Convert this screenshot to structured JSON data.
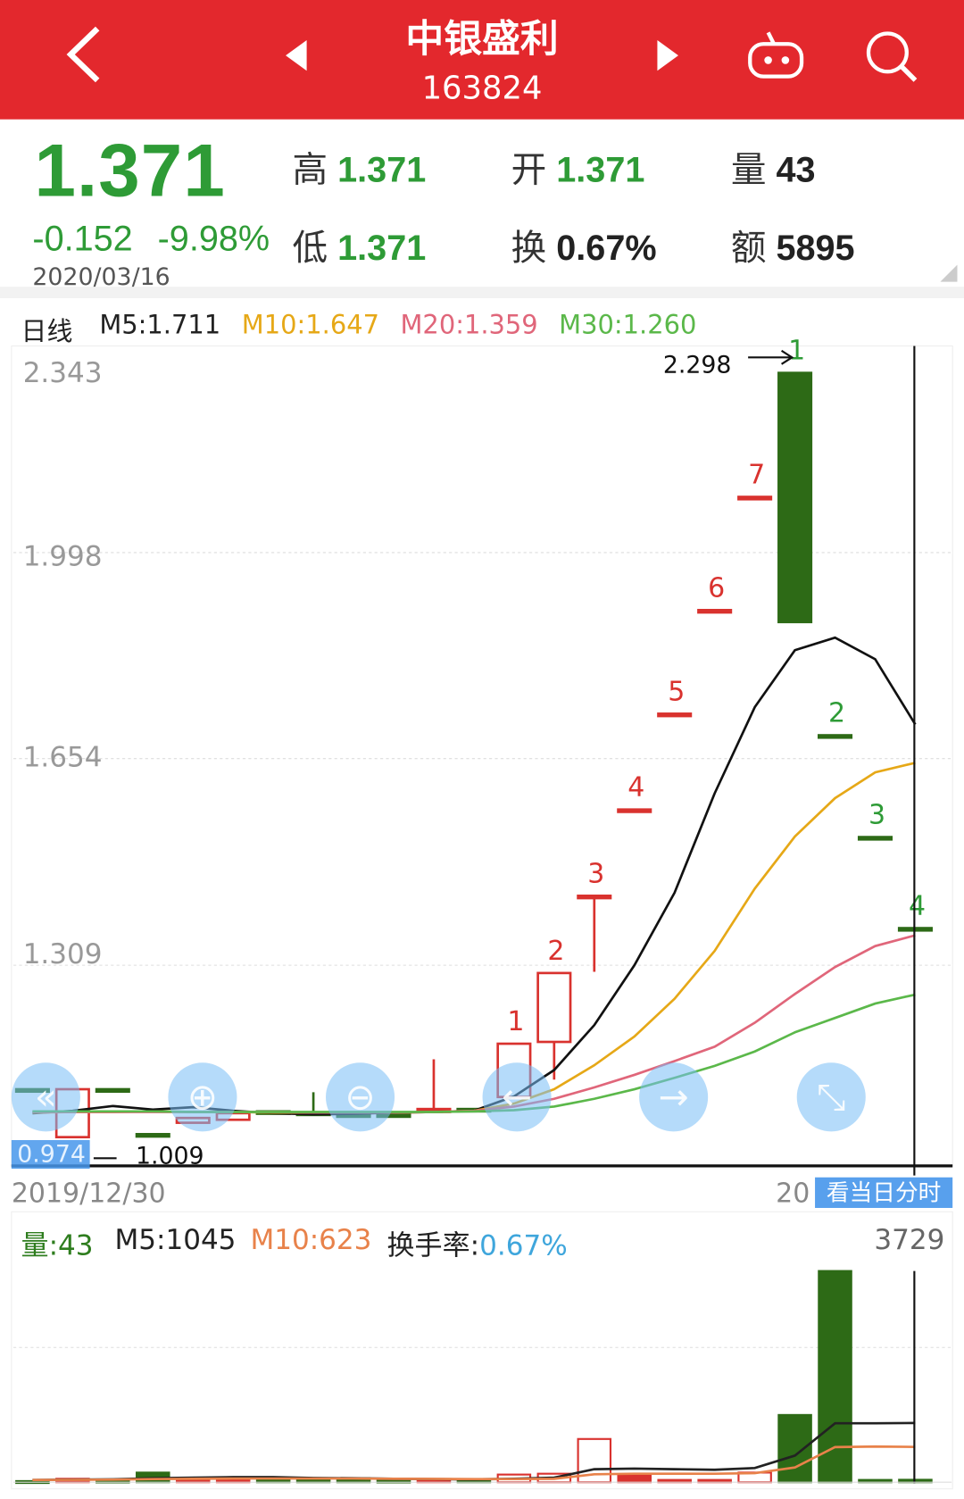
{
  "header": {
    "title": "中银盛利",
    "code": "163824",
    "bg_color": "#e3282d"
  },
  "quote": {
    "price": "1.371",
    "change": "-0.152",
    "change_pct": "-9.98%",
    "date": "2020/03/16",
    "high_label": "高",
    "high": "1.371",
    "low_label": "低",
    "low": "1.371",
    "open_label": "开",
    "open": "1.371",
    "turnover_label": "换",
    "turnover": "0.67%",
    "volume_label": "量",
    "volume": "43",
    "amount_label": "额",
    "amount": "5895",
    "down_color": "#2e9b36"
  },
  "ma_legend": {
    "period": "日线",
    "m5": "M5:1.711",
    "m10": "M10:1.647",
    "m20": "M20:1.359",
    "m30": "M30:1.260"
  },
  "price_axis": [
    "2.343",
    "1.998",
    "1.654",
    "1.309"
  ],
  "annotations": {
    "max_label": "2.298",
    "min_label": "1.009",
    "cursor_price": "0.974"
  },
  "dates": {
    "start": "2019/12/30",
    "end_visible": "20"
  },
  "intraday_button": "看当日分时",
  "vol_legend": {
    "vol": "量:43",
    "m5": "M5:1045",
    "m10": "M10:623",
    "turnover_label": "换手率:",
    "turnover": "0.67%",
    "max": "3729"
  },
  "chart_data": {
    "type": "candlestick",
    "ylim": [
      0.974,
      2.343
    ],
    "grid": true,
    "candles": [
      {
        "o": 1.102,
        "h": 1.102,
        "l": 1.102,
        "c": 1.102
      },
      {
        "o": 1.022,
        "h": 1.102,
        "l": 1.022,
        "c": 1.102
      },
      {
        "o": 1.102,
        "h": 1.102,
        "l": 1.102,
        "c": 1.102
      },
      {
        "o": 1.027,
        "h": 1.027,
        "l": 1.027,
        "c": 1.027
      },
      {
        "o": 1.046,
        "h": 1.054,
        "l": 1.046,
        "c": 1.054
      },
      {
        "o": 1.051,
        "h": 1.062,
        "l": 1.051,
        "c": 1.062
      },
      {
        "o": 1.065,
        "h": 1.065,
        "l": 1.065,
        "c": 1.065
      },
      {
        "o": 1.063,
        "h": 1.097,
        "l": 1.063,
        "c": 1.063
      },
      {
        "o": 1.06,
        "h": 1.06,
        "l": 1.06,
        "c": 1.06
      },
      {
        "o": 1.06,
        "h": 1.06,
        "l": 1.06,
        "c": 1.06
      },
      {
        "o": 1.064,
        "h": 1.152,
        "l": 1.064,
        "c": 1.069
      },
      {
        "o": 1.069,
        "h": 1.069,
        "l": 1.069,
        "c": 1.069
      },
      {
        "o": 1.089,
        "h": 1.178,
        "l": 1.086,
        "c": 1.178
      },
      {
        "o": 1.181,
        "h": 1.296,
        "l": 1.118,
        "c": 1.296
      },
      {
        "o": 1.425,
        "h": 1.425,
        "l": 1.298,
        "c": 1.425
      },
      {
        "o": 1.569,
        "h": 1.569,
        "l": 1.569,
        "c": 1.569
      },
      {
        "o": 1.729,
        "h": 1.729,
        "l": 1.729,
        "c": 1.729
      },
      {
        "o": 1.902,
        "h": 1.902,
        "l": 1.902,
        "c": 1.902
      },
      {
        "o": 2.091,
        "h": 2.091,
        "l": 2.091,
        "c": 2.091
      },
      {
        "o": 2.298,
        "h": 2.298,
        "l": 1.882,
        "c": 1.882
      },
      {
        "o": 1.693,
        "h": 1.693,
        "l": 1.693,
        "c": 1.693
      },
      {
        "o": 1.523,
        "h": 1.523,
        "l": 1.523,
        "c": 1.523
      },
      {
        "o": 1.371,
        "h": 1.371,
        "l": 1.371,
        "c": 1.371
      }
    ],
    "candle_labels": {
      "12": "1",
      "13": "2",
      "14": "3",
      "15": "4",
      "16": "5",
      "17": "6",
      "18": "7",
      "19": "1",
      "20": "2",
      "21": "3",
      "22": "4"
    },
    "series": [
      {
        "name": "M5",
        "color": "#111111",
        "values": [
          1.062,
          1.066,
          1.074,
          1.068,
          1.072,
          1.066,
          1.062,
          1.06,
          1.061,
          1.063,
          1.064,
          1.066,
          1.09,
          1.134,
          1.209,
          1.309,
          1.43,
          1.596,
          1.74,
          1.835,
          1.856,
          1.82,
          1.711
        ]
      },
      {
        "name": "M10",
        "color": "#e6a817",
        "values": [
          1.063,
          1.064,
          1.064,
          1.065,
          1.064,
          1.064,
          1.063,
          1.063,
          1.063,
          1.063,
          1.064,
          1.066,
          1.078,
          1.102,
          1.142,
          1.19,
          1.253,
          1.333,
          1.437,
          1.524,
          1.588,
          1.631,
          1.647
        ]
      },
      {
        "name": "M20",
        "color": "#e0667a",
        "values": [
          1.064,
          1.064,
          1.064,
          1.064,
          1.064,
          1.064,
          1.064,
          1.063,
          1.063,
          1.063,
          1.064,
          1.066,
          1.073,
          1.086,
          1.105,
          1.126,
          1.149,
          1.173,
          1.213,
          1.261,
          1.306,
          1.341,
          1.359
        ]
      },
      {
        "name": "M30",
        "color": "#5bb84a",
        "values": [
          1.065,
          1.065,
          1.065,
          1.065,
          1.064,
          1.064,
          1.064,
          1.064,
          1.064,
          1.064,
          1.064,
          1.065,
          1.067,
          1.073,
          1.086,
          1.102,
          1.121,
          1.141,
          1.165,
          1.197,
          1.221,
          1.245,
          1.26
        ]
      }
    ],
    "volume": {
      "ylim": [
        0,
        3729
      ],
      "values": [
        20,
        60,
        30,
        170,
        80,
        70,
        70,
        70,
        70,
        30,
        40,
        50,
        135,
        150,
        763,
        120,
        40,
        40,
        170,
        1187,
        3729,
        40,
        43
      ],
      "m5": [
        40,
        45,
        50,
        70,
        80,
        90,
        90,
        75,
        70,
        60,
        55,
        50,
        60,
        80,
        230,
        240,
        230,
        220,
        250,
        470,
        1040,
        1040,
        1045
      ],
      "m10": [
        40,
        42,
        45,
        55,
        60,
        65,
        65,
        65,
        65,
        60,
        58,
        55,
        55,
        60,
        140,
        150,
        150,
        150,
        160,
        260,
        620,
        630,
        623
      ],
      "m5_color": "#222222",
      "m10_color": "#e8824a"
    }
  }
}
